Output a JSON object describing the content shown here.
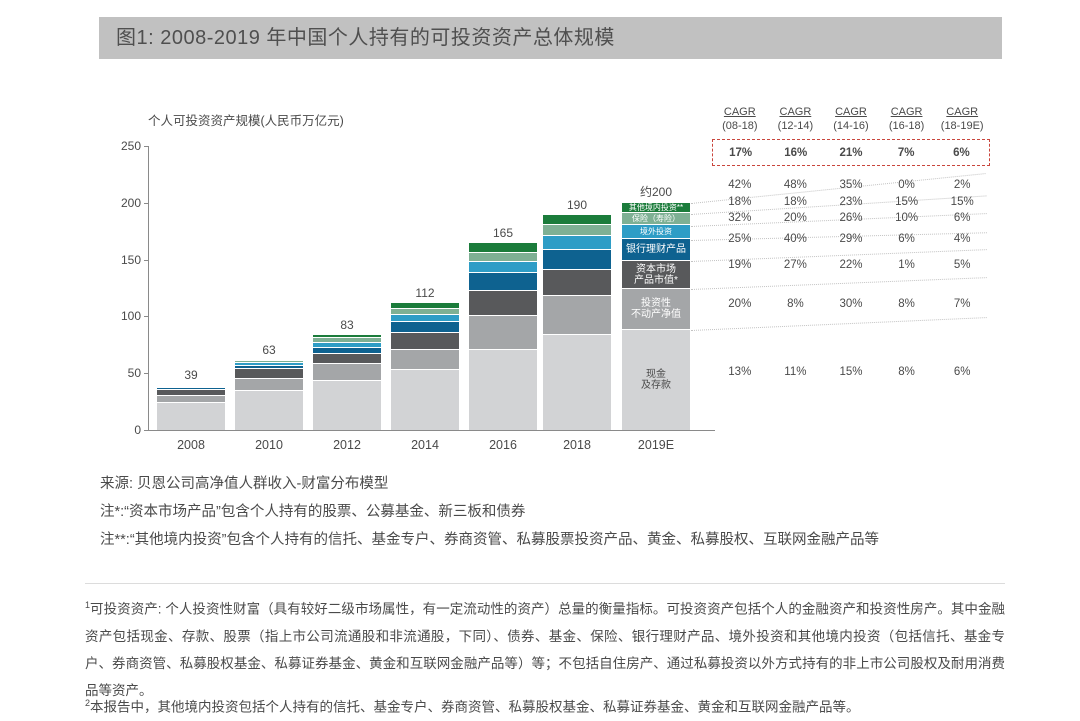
{
  "figure": {
    "title": "图1: 2008-2019 年中国个人持有的可投资资产总体规模"
  },
  "chart_data": {
    "type": "bar",
    "stacked": true,
    "title": "2008-2019 年中国个人持有的可投资资产总体规模",
    "ylabel": "个人可投资资产规模(人民币万亿元)",
    "xlabel": "",
    "ylim": [
      0,
      250
    ],
    "yticks": [
      0,
      50,
      100,
      150,
      200,
      250
    ],
    "grid": false,
    "categories": [
      "2008",
      "2010",
      "2012",
      "2014",
      "2016",
      "2018",
      "2019E"
    ],
    "totals": [
      "39",
      "63",
      "83",
      "112",
      "165",
      "190",
      "约200"
    ],
    "label_category": "2019E",
    "series": [
      {
        "name": "现金及存款",
        "label_lines": [
          "现金",
          "及存款"
        ],
        "color": "#d2d3d5",
        "text_color": "#4a4a4a",
        "values": [
          24,
          34,
          43,
          53,
          70,
          84,
          88
        ]
      },
      {
        "name": "投资性不动产净值",
        "label_lines": [
          "投资性",
          "不动产净值"
        ],
        "color": "#a4a6a8",
        "text_color": "#ffffff",
        "values": [
          6,
          11,
          15,
          18,
          30,
          34,
          36
        ]
      },
      {
        "name": "资本市场产品市值*",
        "label_lines": [
          "资本市场",
          "产品市值*"
        ],
        "color": "#58595b",
        "text_color": "#ffffff",
        "values": [
          5,
          9,
          9,
          15,
          22,
          23,
          25
        ]
      },
      {
        "name": "银行理财产品",
        "label_lines": [
          "银行理财产品"
        ],
        "color": "#0e6290",
        "text_color": "#ffffff",
        "values": [
          1.5,
          3,
          5,
          10,
          16,
          18,
          19
        ]
      },
      {
        "name": "境外投资",
        "label_lines": [
          "境外投资"
        ],
        "color": "#2e9dc6",
        "text_color": "#ffffff",
        "values": [
          1,
          3,
          4,
          6,
          10,
          12,
          12
        ]
      },
      {
        "name": "保险（寿险）",
        "label_lines": [
          "保险（寿险）"
        ],
        "color": "#7eb094",
        "text_color": "#ffffff",
        "values": [
          1,
          2,
          4,
          5,
          8,
          10,
          11
        ]
      },
      {
        "name": "其他境内投资**",
        "label_lines": [
          "其他境内投资**"
        ],
        "color": "#1b7c3b",
        "text_color": "#ffffff",
        "values": [
          0.5,
          1,
          3,
          5,
          9,
          9,
          9
        ]
      }
    ]
  },
  "cagr_table": {
    "columns": [
      {
        "label": "CAGR",
        "period": "(08-18)"
      },
      {
        "label": "CAGR",
        "period": "(12-14)"
      },
      {
        "label": "CAGR",
        "period": "(14-16)"
      },
      {
        "label": "CAGR",
        "period": "(16-18)"
      },
      {
        "label": "CAGR",
        "period": "(18-19E)"
      }
    ],
    "total_row": [
      "17%",
      "16%",
      "21%",
      "7%",
      "6%"
    ],
    "rows": [
      {
        "segment": "其他境内投资**",
        "values": [
          "42%",
          "48%",
          "35%",
          "0%",
          "2%"
        ]
      },
      {
        "segment": "保险（寿险）",
        "values": [
          "18%",
          "18%",
          "23%",
          "15%",
          "15%"
        ]
      },
      {
        "segment": "境外投资",
        "values": [
          "32%",
          "20%",
          "26%",
          "10%",
          "6%"
        ]
      },
      {
        "segment": "银行理财产品",
        "values": [
          "25%",
          "40%",
          "29%",
          "6%",
          "4%"
        ]
      },
      {
        "segment": "资本市场产品市值*",
        "values": [
          "19%",
          "27%",
          "22%",
          "1%",
          "5%"
        ]
      },
      {
        "segment": "投资性不动产净值",
        "values": [
          "20%",
          "8%",
          "30%",
          "8%",
          "7%"
        ]
      },
      {
        "segment": "现金及存款",
        "values": [
          "13%",
          "11%",
          "15%",
          "8%",
          "6%"
        ]
      }
    ],
    "total_box_color": "#c9453c"
  },
  "notes": {
    "source": "来源: 贝恩公司高净值人群收入-财富分布模型",
    "note_star": "注*:“资本市场产品”包含个人持有的股票、公募基金、新三板和债券",
    "note_double_star": "注**:“其他境内投资”包含个人持有的信托、基金专户、券商资管、私募股票投资产品、黄金、私募股权、互联网金融产品等"
  },
  "footnotes": {
    "fn1_sup": "1",
    "fn1": "可投资资产: 个人投资性财富（具有较好二级市场属性，有一定流动性的资产）总量的衡量指标。可投资资产包括个人的金融资产和投资性房产。其中金融资产包括现金、存款、股票（指上市公司流通股和非流通股，下同）、债券、基金、保险、银行理财产品、境外投资和其他境内投资（包括信托、基金专户、券商资管、私募股权基金、私募证券基金、黄金和互联网金融产品等）等；不包括自住房产、通过私募投资以外方式持有的非上市公司股权及耐用消费品等资产。",
    "fn2_sup": "2",
    "fn2": "本报告中，其他境内投资包括个人持有的信托、基金专户、券商资管、私募股权基金、私募证券基金、黄金和互联网金融产品等。"
  },
  "colors": {
    "title_bar_bg": "#c1c1c1",
    "axis": "#8a8a8a",
    "text": "#4a4a4a",
    "cagr_box_border": "#c9453c",
    "leader_dots": "#c3c3c3"
  }
}
